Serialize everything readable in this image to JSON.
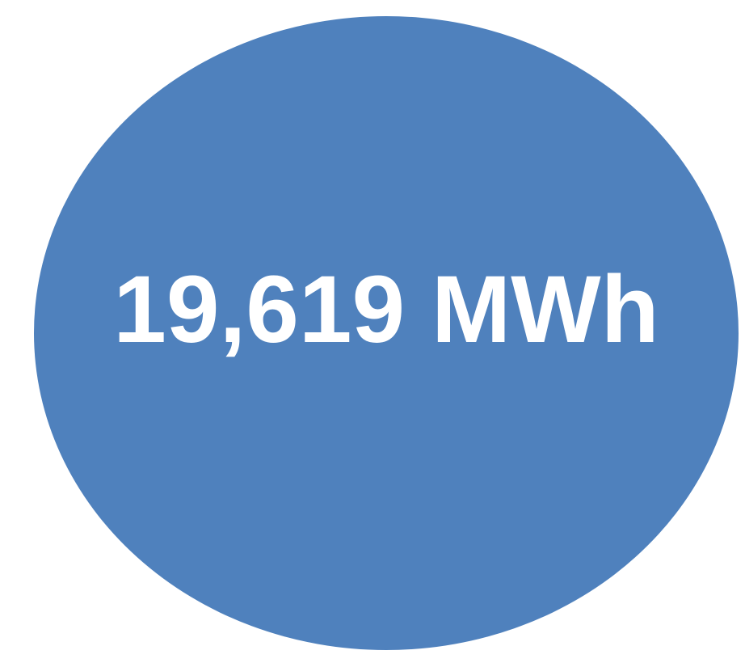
{
  "label": "19,619 MWh"
}
